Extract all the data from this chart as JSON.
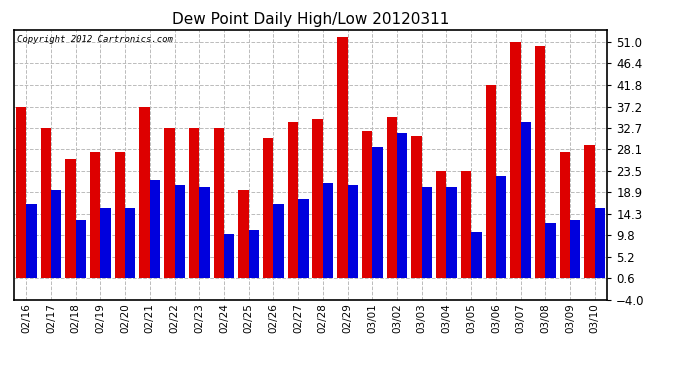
{
  "title": "Dew Point Daily High/Low 20120311",
  "copyright_text": "Copyright 2012 Cartronics.com",
  "categories": [
    "02/16",
    "02/17",
    "02/18",
    "02/19",
    "02/20",
    "02/21",
    "02/22",
    "02/23",
    "02/24",
    "02/25",
    "02/26",
    "02/27",
    "02/28",
    "02/29",
    "03/01",
    "03/02",
    "03/03",
    "03/04",
    "03/05",
    "03/06",
    "03/07",
    "03/08",
    "03/09",
    "03/10"
  ],
  "high_values": [
    37.2,
    32.7,
    26.0,
    27.5,
    27.5,
    37.2,
    32.7,
    32.7,
    32.7,
    19.5,
    30.5,
    34.0,
    34.5,
    52.0,
    32.0,
    35.0,
    31.0,
    23.5,
    23.5,
    41.8,
    51.0,
    50.0,
    27.5,
    29.0
  ],
  "low_values": [
    16.5,
    19.5,
    13.0,
    15.5,
    15.5,
    21.5,
    20.5,
    20.0,
    10.0,
    11.0,
    16.5,
    17.5,
    21.0,
    20.5,
    28.5,
    31.5,
    20.0,
    20.0,
    10.5,
    22.5,
    34.0,
    12.5,
    13.0,
    15.5
  ],
  "high_color": "#dd0000",
  "low_color": "#0000dd",
  "background_color": "#ffffff",
  "plot_bg_color": "#ffffff",
  "grid_color": "#bbbbbb",
  "yticks": [
    -4.0,
    0.6,
    5.2,
    9.8,
    14.3,
    18.9,
    23.5,
    28.1,
    32.7,
    37.2,
    41.8,
    46.4,
    51.0
  ],
  "ymin": -4.0,
  "ymax": 53.5,
  "bar_width": 0.42,
  "bar_bottom": 0.6,
  "figwidth": 6.9,
  "figheight": 3.75,
  "dpi": 100
}
